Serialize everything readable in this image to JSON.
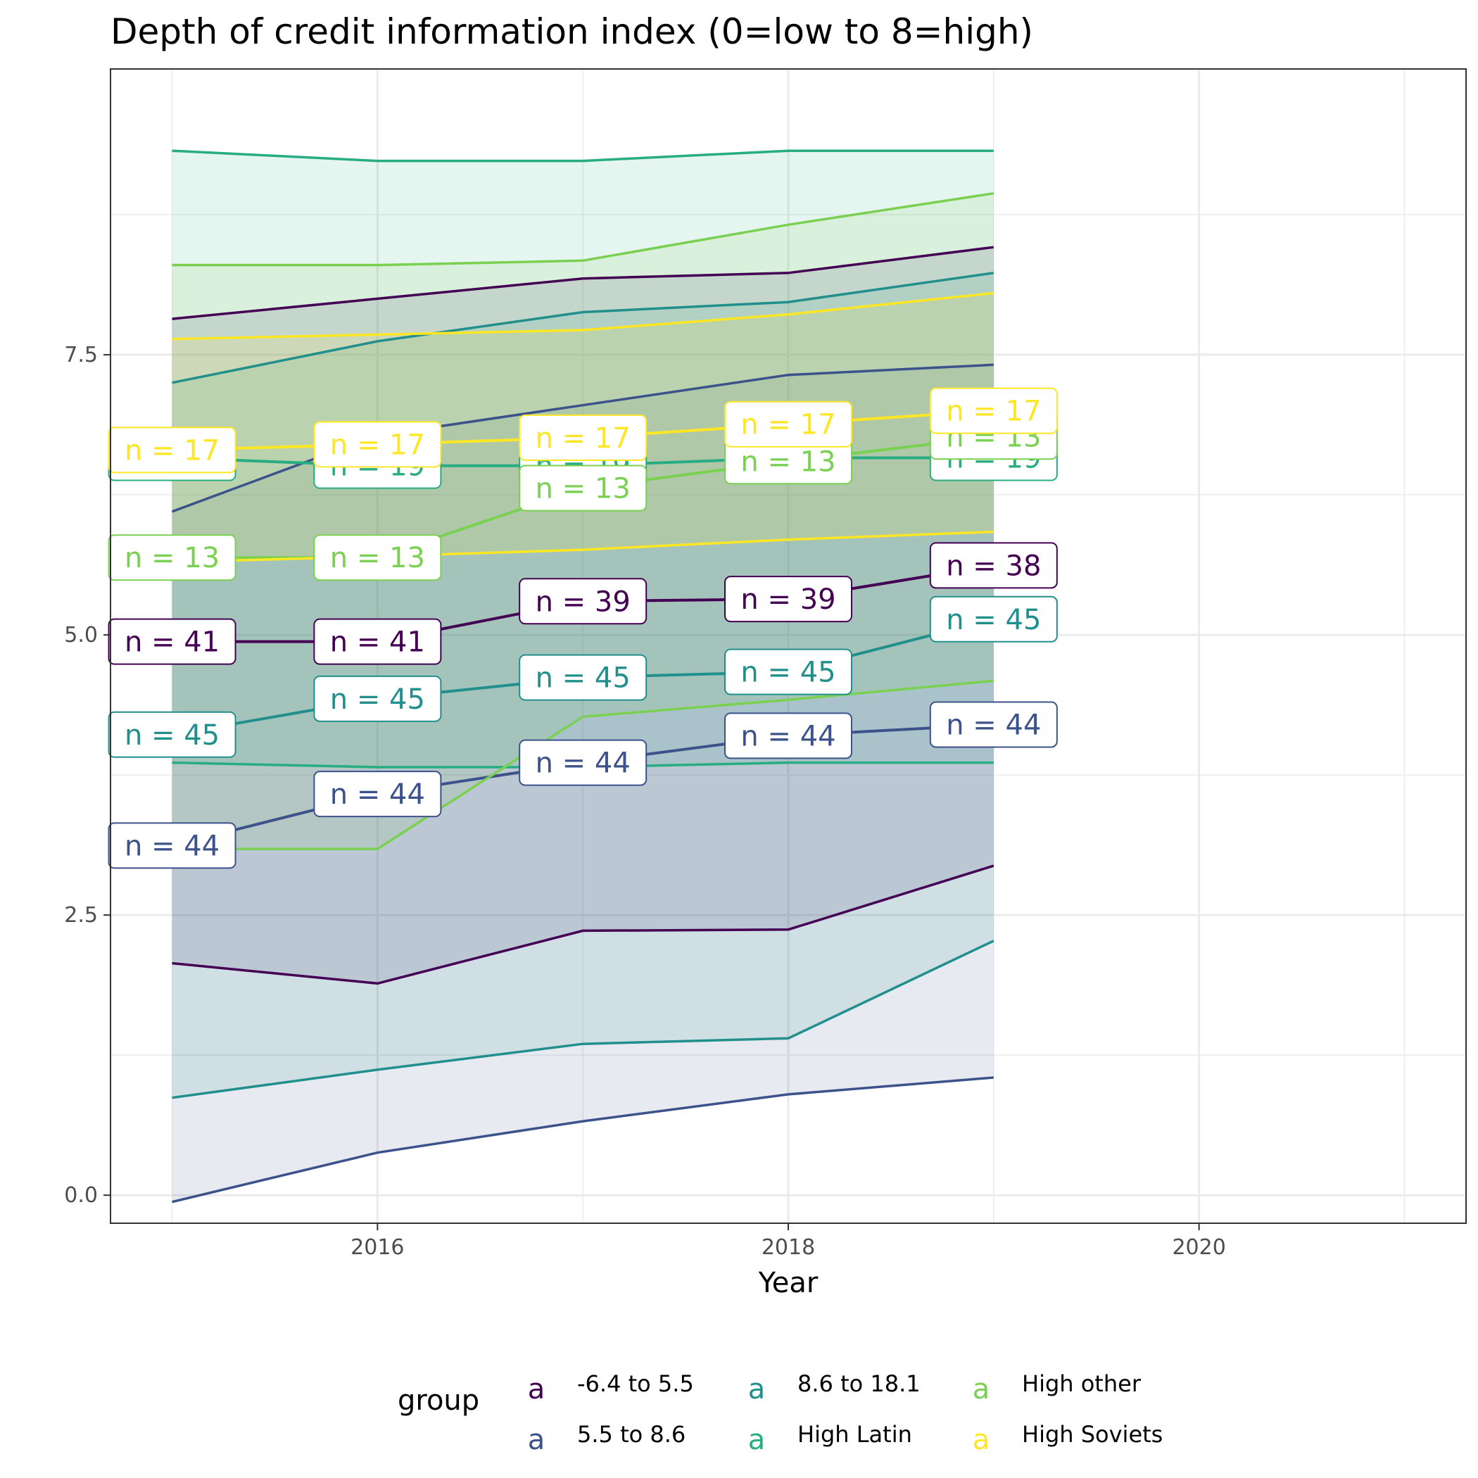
{
  "chart_data": {
    "type": "area",
    "title": "Depth of credit information index (0=low to 8=high)",
    "xlabel": "Year",
    "ylabel": "",
    "x": [
      2015,
      2016,
      2017,
      2018,
      2019
    ],
    "xlim": [
      2014.7,
      2021.3
    ],
    "ylim": [
      -0.25,
      10.05
    ],
    "x_ticks": [
      2016,
      2018,
      2020
    ],
    "x_tick_labels": [
      "2016",
      "2018",
      "2020"
    ],
    "y_ticks": [
      0,
      2.5,
      5,
      7.5
    ],
    "y_tick_labels": [
      "0.0",
      "2.5",
      "5.0",
      "7.5"
    ],
    "grid": true,
    "legend": {
      "title": "group",
      "position": "bottom",
      "key_glyph": "a",
      "entries": [
        "-6.4 to 5.5",
        "5.5 to 8.6",
        "8.6 to 18.1",
        "High Latin",
        "High other",
        "High Soviets"
      ]
    },
    "series": [
      {
        "name": "-6.4 to 5.5",
        "color": "#440154",
        "mean": [
          4.94,
          4.94,
          5.3,
          5.32,
          5.62
        ],
        "lower": [
          2.07,
          1.89,
          2.36,
          2.37,
          2.94
        ],
        "upper": [
          7.82,
          8.0,
          8.18,
          8.23,
          8.46
        ],
        "labels": [
          "n = 41",
          "n = 41",
          "n = 39",
          "n = 39",
          "n = 38"
        ]
      },
      {
        "name": "5.5 to 8.6",
        "color": "#3B528B",
        "mean": [
          3.12,
          3.58,
          3.86,
          4.1,
          4.2
        ],
        "lower": [
          -0.06,
          0.38,
          0.66,
          0.9,
          1.05
        ],
        "upper": [
          6.1,
          6.78,
          7.05,
          7.32,
          7.41
        ],
        "labels": [
          "n = 44",
          "n = 44",
          "n = 44",
          "n = 44",
          "n = 44"
        ]
      },
      {
        "name": "8.6 to 18.1",
        "color": "#21908C",
        "mean": [
          4.11,
          4.43,
          4.62,
          4.67,
          5.14
        ],
        "lower": [
          0.87,
          1.12,
          1.35,
          1.4,
          2.27
        ],
        "upper": [
          7.25,
          7.62,
          7.88,
          7.97,
          8.23
        ],
        "labels": [
          "n = 45",
          "n = 45",
          "n = 45",
          "n = 45",
          "n = 45"
        ]
      },
      {
        "name": "High Latin",
        "color": "#27AD81",
        "mean": [
          6.58,
          6.51,
          6.51,
          6.58,
          6.58
        ],
        "lower": [
          3.86,
          3.82,
          3.82,
          3.86,
          3.86
        ],
        "upper": [
          9.32,
          9.23,
          9.23,
          9.32,
          9.32
        ],
        "labels": [
          "n = 19",
          "n = 19",
          "n = 19",
          "n = 19",
          "n = 19"
        ]
      },
      {
        "name": "High other",
        "color": "#7AD151",
        "mean": [
          5.69,
          5.69,
          6.31,
          6.55,
          6.77
        ],
        "lower": [
          3.09,
          3.09,
          4.27,
          4.42,
          4.59
        ],
        "upper": [
          8.3,
          8.3,
          8.34,
          8.66,
          8.94
        ],
        "labels": [
          "n = 13",
          "n = 13",
          "n = 13",
          "n = 13",
          "n = 13"
        ]
      },
      {
        "name": "High Soviets",
        "color": "#FDE725",
        "mean": [
          6.65,
          6.7,
          6.76,
          6.88,
          7.0
        ],
        "lower": [
          5.65,
          5.7,
          5.76,
          5.85,
          5.92
        ],
        "upper": [
          7.64,
          7.68,
          7.72,
          7.86,
          8.05
        ],
        "labels": [
          "n = 17",
          "n = 17",
          "n = 17",
          "n = 17",
          "n = 17"
        ]
      }
    ]
  }
}
